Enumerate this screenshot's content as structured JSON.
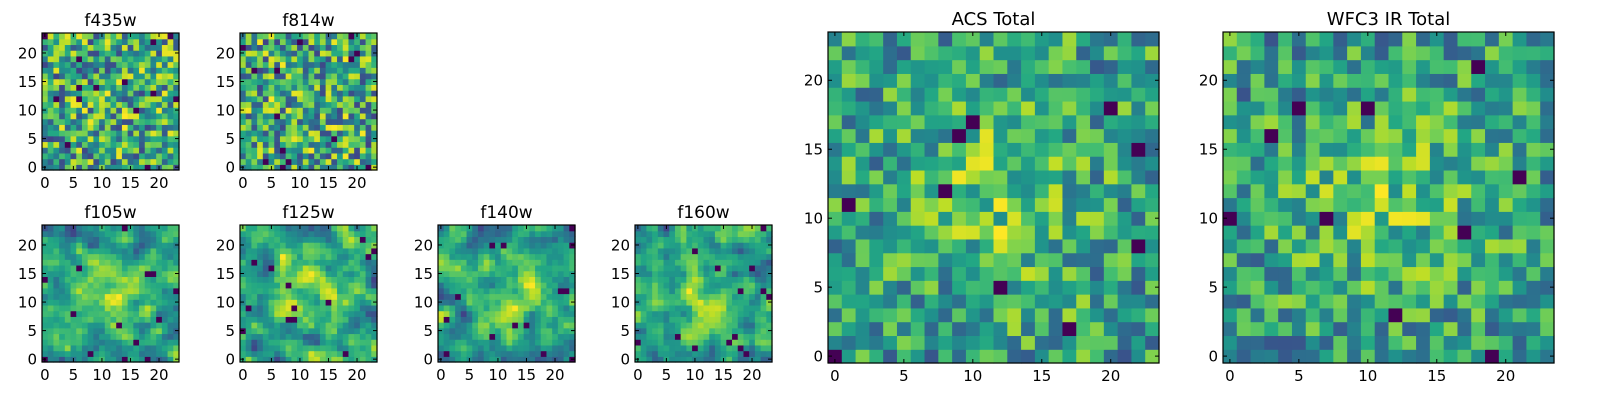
{
  "chart_data": [
    {
      "type": "heatmap",
      "title": "f435w",
      "shape": [
        24,
        24
      ],
      "seed": 11,
      "smooth": 0,
      "xticks": [
        0,
        5,
        10,
        15,
        20
      ],
      "yticks": [
        0,
        5,
        10,
        15,
        20
      ],
      "xlim": [
        -0.5,
        23.5
      ],
      "ylim": [
        -0.5,
        23.5
      ],
      "colormap": "viridis",
      "cells": "24x24 noisy pixel values (per-pixel data not labelled)"
    },
    {
      "type": "heatmap",
      "title": "f814w",
      "shape": [
        24,
        24
      ],
      "seed": 23,
      "smooth": 0,
      "xticks": [
        0,
        5,
        10,
        15,
        20
      ],
      "yticks": [
        0,
        5,
        10,
        15,
        20
      ],
      "xlim": [
        -0.5,
        23.5
      ],
      "ylim": [
        -0.5,
        23.5
      ],
      "colormap": "viridis",
      "cells": "24x24 noisy pixel values (per-pixel data not labelled)"
    },
    {
      "type": "heatmap",
      "title": "f105w",
      "shape": [
        24,
        24
      ],
      "seed": 37,
      "smooth": 1,
      "xticks": [
        0,
        5,
        10,
        15,
        20
      ],
      "yticks": [
        0,
        5,
        10,
        15,
        20
      ],
      "xlim": [
        -0.5,
        23.5
      ],
      "ylim": [
        -0.5,
        23.5
      ],
      "colormap": "viridis",
      "cells": "24x24 smoothed pixel values (per-pixel data not labelled)"
    },
    {
      "type": "heatmap",
      "title": "f125w",
      "shape": [
        24,
        24
      ],
      "seed": 41,
      "smooth": 1,
      "xticks": [
        0,
        5,
        10,
        15,
        20
      ],
      "yticks": [
        0,
        5,
        10,
        15,
        20
      ],
      "xlim": [
        -0.5,
        23.5
      ],
      "ylim": [
        -0.5,
        23.5
      ],
      "colormap": "viridis",
      "cells": "24x24 smoothed pixel values (per-pixel data not labelled)"
    },
    {
      "type": "heatmap",
      "title": "f140w",
      "shape": [
        24,
        24
      ],
      "seed": 53,
      "smooth": 1,
      "xticks": [
        0,
        5,
        10,
        15,
        20
      ],
      "yticks": [
        0,
        5,
        10,
        15,
        20
      ],
      "xlim": [
        -0.5,
        23.5
      ],
      "ylim": [
        -0.5,
        23.5
      ],
      "colormap": "viridis",
      "cells": "24x24 smoothed pixel values (per-pixel data not labelled)"
    },
    {
      "type": "heatmap",
      "title": "f160w",
      "shape": [
        24,
        24
      ],
      "seed": 67,
      "smooth": 1,
      "xticks": [
        0,
        5,
        10,
        15,
        20
      ],
      "yticks": [
        0,
        5,
        10,
        15,
        20
      ],
      "xlim": [
        -0.5,
        23.5
      ],
      "ylim": [
        -0.5,
        23.5
      ],
      "colormap": "viridis",
      "cells": "24x24 smoothed pixel values (per-pixel data not labelled)"
    },
    {
      "type": "heatmap",
      "title": "ACS Total",
      "shape": [
        24,
        24
      ],
      "seed": 79,
      "smooth": 0,
      "xticks": [
        0,
        5,
        10,
        15,
        20
      ],
      "yticks": [
        0,
        5,
        10,
        15,
        20
      ],
      "xlim": [
        -0.5,
        23.5
      ],
      "ylim": [
        -0.5,
        23.5
      ],
      "colormap": "viridis",
      "cells": "24x24 pixel values, brighter near center (per-pixel data not labelled)"
    },
    {
      "type": "heatmap",
      "title": "WFC3 IR Total",
      "shape": [
        24,
        24
      ],
      "seed": 97,
      "smooth": 0,
      "xticks": [
        0,
        5,
        10,
        15,
        20
      ],
      "yticks": [
        0,
        5,
        10,
        15,
        20
      ],
      "xlim": [
        -0.5,
        23.5
      ],
      "ylim": [
        -0.5,
        23.5
      ],
      "colormap": "viridis",
      "cells": "24x24 pixel values, bright source near center (per-pixel data not labelled)"
    }
  ]
}
